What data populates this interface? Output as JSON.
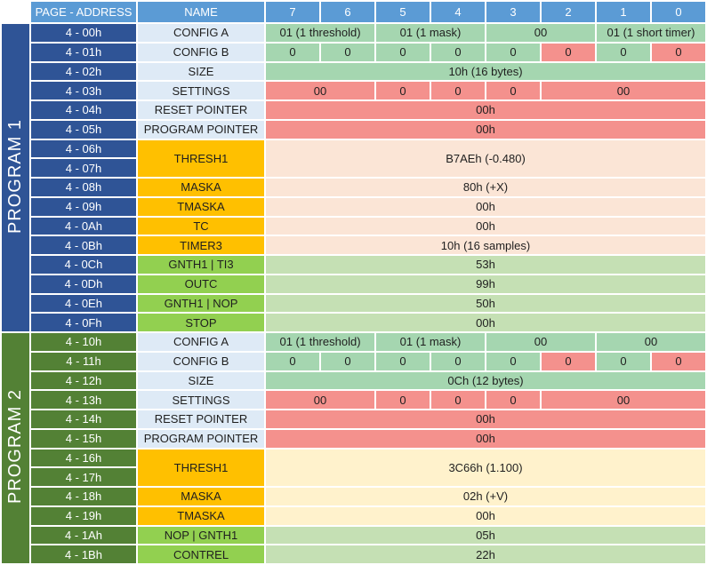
{
  "palette": {
    "header-blue": "#5B9BD5",
    "program1-blue": "#2F5496",
    "program2-green": "#538135",
    "name-lightblue": "#DEEAF6",
    "name-gold": "#FFC000",
    "name-green": "#92D050",
    "value-green": "#A5D6B0",
    "value-red": "#F4918D",
    "value-peach": "#FBE5D6",
    "value-cream": "#FFF2CC",
    "value-lightgreen": "#C5E0B4",
    "text-dark": "#1F1F1F",
    "text-white": "#FFFFFF"
  },
  "header": {
    "page_address": "PAGE - ADDRESS",
    "name": "NAME",
    "bits": [
      "7",
      "6",
      "5",
      "4",
      "3",
      "2",
      "1",
      "0"
    ]
  },
  "programs": [
    {
      "label": "PROGRAM 1",
      "style_key": "p1",
      "rows": [
        {
          "addresses": [
            "4 - 00h"
          ],
          "name": "CONFIG A",
          "name_style": "blue",
          "cells": [
            {
              "span": 2,
              "text": "01 (1 threshold)",
              "style": "green"
            },
            {
              "span": 2,
              "text": "01 (1 mask)",
              "style": "green"
            },
            {
              "span": 2,
              "text": "00",
              "style": "green"
            },
            {
              "span": 2,
              "text": "01 (1 short timer)",
              "style": "green"
            }
          ]
        },
        {
          "addresses": [
            "4 - 01h"
          ],
          "name": "CONFIG B",
          "name_style": "blue",
          "cells": [
            {
              "span": 1,
              "text": "0",
              "style": "green"
            },
            {
              "span": 1,
              "text": "0",
              "style": "green"
            },
            {
              "span": 1,
              "text": "0",
              "style": "green"
            },
            {
              "span": 1,
              "text": "0",
              "style": "green"
            },
            {
              "span": 1,
              "text": "0",
              "style": "green"
            },
            {
              "span": 1,
              "text": "0",
              "style": "red"
            },
            {
              "span": 1,
              "text": "0",
              "style": "green"
            },
            {
              "span": 1,
              "text": "0",
              "style": "red"
            }
          ]
        },
        {
          "addresses": [
            "4 - 02h"
          ],
          "name": "SIZE",
          "name_style": "blue",
          "cells": [
            {
              "span": 8,
              "text": "10h (16 bytes)",
              "style": "green"
            }
          ]
        },
        {
          "addresses": [
            "4 - 03h"
          ],
          "name": "SETTINGS",
          "name_style": "blue",
          "cells": [
            {
              "span": 2,
              "text": "00",
              "style": "red"
            },
            {
              "span": 1,
              "text": "0",
              "style": "red"
            },
            {
              "span": 1,
              "text": "0",
              "style": "red"
            },
            {
              "span": 1,
              "text": "0",
              "style": "red"
            },
            {
              "span": 3,
              "text": "00",
              "style": "red"
            }
          ]
        },
        {
          "addresses": [
            "4 - 04h"
          ],
          "name": "RESET POINTER",
          "name_style": "blue",
          "cells": [
            {
              "span": 8,
              "text": "00h",
              "style": "red"
            }
          ]
        },
        {
          "addresses": [
            "4 - 05h"
          ],
          "name": "PROGRAM POINTER",
          "name_style": "blue",
          "cells": [
            {
              "span": 8,
              "text": "00h",
              "style": "red"
            }
          ]
        },
        {
          "addresses": [
            "4 - 06h",
            "4 - 07h"
          ],
          "name": "THRESH1",
          "name_style": "gold",
          "cells": [
            {
              "span": 8,
              "text": "B7AEh (-0.480)",
              "style": "peach"
            }
          ]
        },
        {
          "addresses": [
            "4 - 08h"
          ],
          "name": "MASKA",
          "name_style": "gold",
          "cells": [
            {
              "span": 8,
              "text": "80h (+X)",
              "style": "peach"
            }
          ]
        },
        {
          "addresses": [
            "4 - 09h"
          ],
          "name": "TMASKA",
          "name_style": "gold",
          "cells": [
            {
              "span": 8,
              "text": "00h",
              "style": "peach"
            }
          ]
        },
        {
          "addresses": [
            "4 - 0Ah"
          ],
          "name": "TC",
          "name_style": "gold",
          "cells": [
            {
              "span": 8,
              "text": "00h",
              "style": "peach"
            }
          ]
        },
        {
          "addresses": [
            "4 - 0Bh"
          ],
          "name": "TIMER3",
          "name_style": "gold",
          "cells": [
            {
              "span": 8,
              "text": "10h (16 samples)",
              "style": "peach"
            }
          ]
        },
        {
          "addresses": [
            "4 - 0Ch"
          ],
          "name": "GNTH1 | TI3",
          "name_style": "green",
          "cells": [
            {
              "span": 8,
              "text": "53h",
              "style": "lightgreen"
            }
          ]
        },
        {
          "addresses": [
            "4 - 0Dh"
          ],
          "name": "OUTC",
          "name_style": "green",
          "cells": [
            {
              "span": 8,
              "text": "99h",
              "style": "lightgreen"
            }
          ]
        },
        {
          "addresses": [
            "4 - 0Eh"
          ],
          "name": "GNTH1 | NOP",
          "name_style": "green",
          "cells": [
            {
              "span": 8,
              "text": "50h",
              "style": "lightgreen"
            }
          ]
        },
        {
          "addresses": [
            "4 - 0Fh"
          ],
          "name": "STOP",
          "name_style": "green",
          "cells": [
            {
              "span": 8,
              "text": "00h",
              "style": "lightgreen"
            }
          ]
        }
      ]
    },
    {
      "label": "PROGRAM 2",
      "style_key": "p2",
      "rows": [
        {
          "addresses": [
            "4 - 10h"
          ],
          "name": "CONFIG A",
          "name_style": "blue",
          "cells": [
            {
              "span": 2,
              "text": "01 (1 threshold)",
              "style": "green"
            },
            {
              "span": 2,
              "text": "01 (1 mask)",
              "style": "green"
            },
            {
              "span": 2,
              "text": "00",
              "style": "green"
            },
            {
              "span": 2,
              "text": "00",
              "style": "green"
            }
          ]
        },
        {
          "addresses": [
            "4 - 11h"
          ],
          "name": "CONFIG B",
          "name_style": "blue",
          "cells": [
            {
              "span": 1,
              "text": "0",
              "style": "green"
            },
            {
              "span": 1,
              "text": "0",
              "style": "green"
            },
            {
              "span": 1,
              "text": "0",
              "style": "green"
            },
            {
              "span": 1,
              "text": "0",
              "style": "green"
            },
            {
              "span": 1,
              "text": "0",
              "style": "green"
            },
            {
              "span": 1,
              "text": "0",
              "style": "red"
            },
            {
              "span": 1,
              "text": "0",
              "style": "green"
            },
            {
              "span": 1,
              "text": "0",
              "style": "red"
            }
          ]
        },
        {
          "addresses": [
            "4 - 12h"
          ],
          "name": "SIZE",
          "name_style": "blue",
          "cells": [
            {
              "span": 8,
              "text": "0Ch (12 bytes)",
              "style": "green"
            }
          ]
        },
        {
          "addresses": [
            "4 - 13h"
          ],
          "name": "SETTINGS",
          "name_style": "blue",
          "cells": [
            {
              "span": 2,
              "text": "00",
              "style": "red"
            },
            {
              "span": 1,
              "text": "0",
              "style": "red"
            },
            {
              "span": 1,
              "text": "0",
              "style": "red"
            },
            {
              "span": 1,
              "text": "0",
              "style": "red"
            },
            {
              "span": 3,
              "text": "00",
              "style": "red"
            }
          ]
        },
        {
          "addresses": [
            "4 - 14h"
          ],
          "name": "RESET POINTER",
          "name_style": "blue",
          "cells": [
            {
              "span": 8,
              "text": "00h",
              "style": "red"
            }
          ]
        },
        {
          "addresses": [
            "4 - 15h"
          ],
          "name": "PROGRAM POINTER",
          "name_style": "blue",
          "cells": [
            {
              "span": 8,
              "text": "00h",
              "style": "red"
            }
          ]
        },
        {
          "addresses": [
            "4 - 16h",
            "4 - 17h"
          ],
          "name": "THRESH1",
          "name_style": "gold",
          "cells": [
            {
              "span": 8,
              "text": "3C66h (1.100)",
              "style": "cream"
            }
          ]
        },
        {
          "addresses": [
            "4 - 18h"
          ],
          "name": "MASKA",
          "name_style": "gold",
          "cells": [
            {
              "span": 8,
              "text": "02h (+V)",
              "style": "cream"
            }
          ]
        },
        {
          "addresses": [
            "4 - 19h"
          ],
          "name": "TMASKA",
          "name_style": "gold",
          "cells": [
            {
              "span": 8,
              "text": "00h",
              "style": "cream"
            }
          ]
        },
        {
          "addresses": [
            "4 - 1Ah"
          ],
          "name": "NOP | GNTH1",
          "name_style": "green",
          "cells": [
            {
              "span": 8,
              "text": "05h",
              "style": "lightgreen"
            }
          ]
        },
        {
          "addresses": [
            "4 - 1Bh"
          ],
          "name": "CONTREL",
          "name_style": "green",
          "cells": [
            {
              "span": 8,
              "text": "22h",
              "style": "lightgreen"
            }
          ]
        }
      ]
    }
  ]
}
